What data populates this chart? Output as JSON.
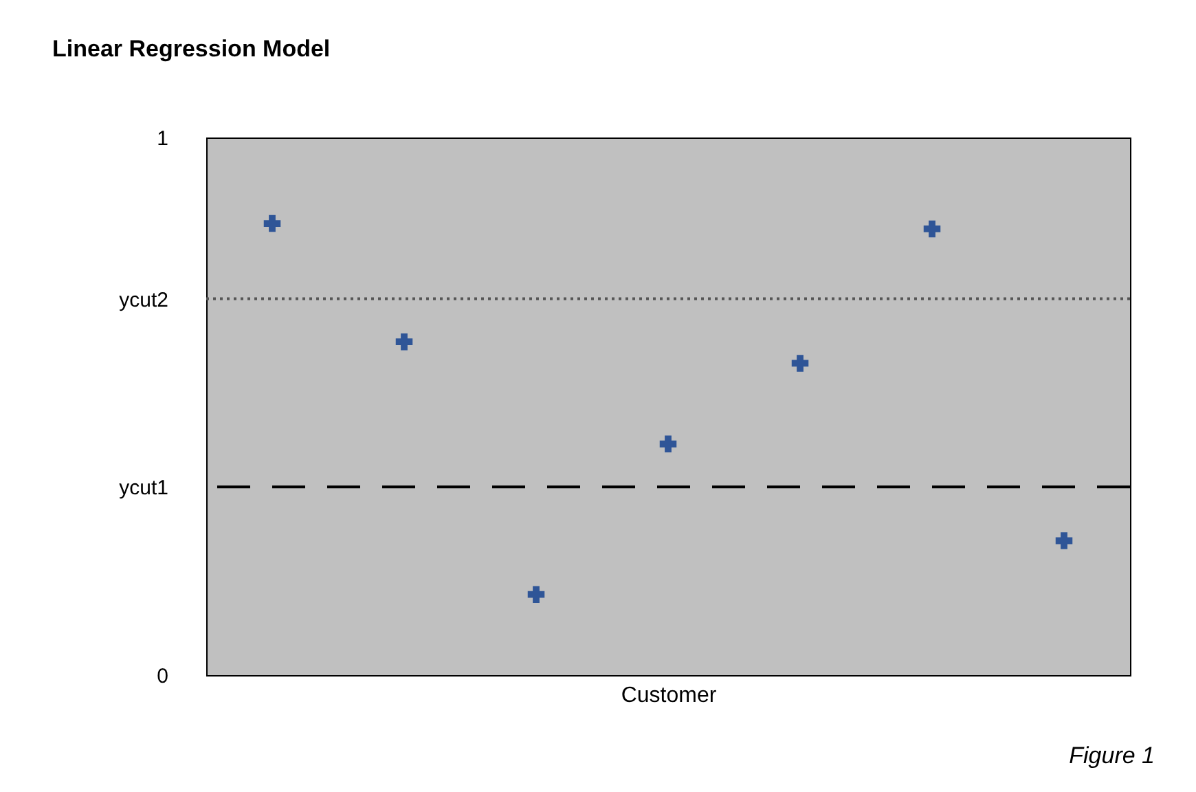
{
  "chart_data": {
    "type": "scatter",
    "title": "Linear Regression Model",
    "xlabel": "Customer",
    "categories": [
      null,
      null,
      null,
      null,
      null,
      null,
      null
    ],
    "values": [
      0.84,
      0.62,
      0.15,
      0.43,
      0.58,
      0.83,
      0.25
    ],
    "color": "#2f5597",
    "marker": "cross",
    "ylim": [
      0,
      1
    ],
    "yticks": [
      0,
      {
        "value": 0.35,
        "label": "ycut1"
      },
      {
        "value": 0.7,
        "label": "ycut2"
      },
      1
    ],
    "tick_labels": "y",
    "ref_lines": [
      {
        "axis": "y",
        "value": 0.35,
        "color": "#000000",
        "line_style": "dashed"
      },
      {
        "axis": "y",
        "value": 0.7,
        "color": "#555555",
        "line_style": "dotted"
      }
    ],
    "annotations": [
      "Figure 1"
    ]
  }
}
